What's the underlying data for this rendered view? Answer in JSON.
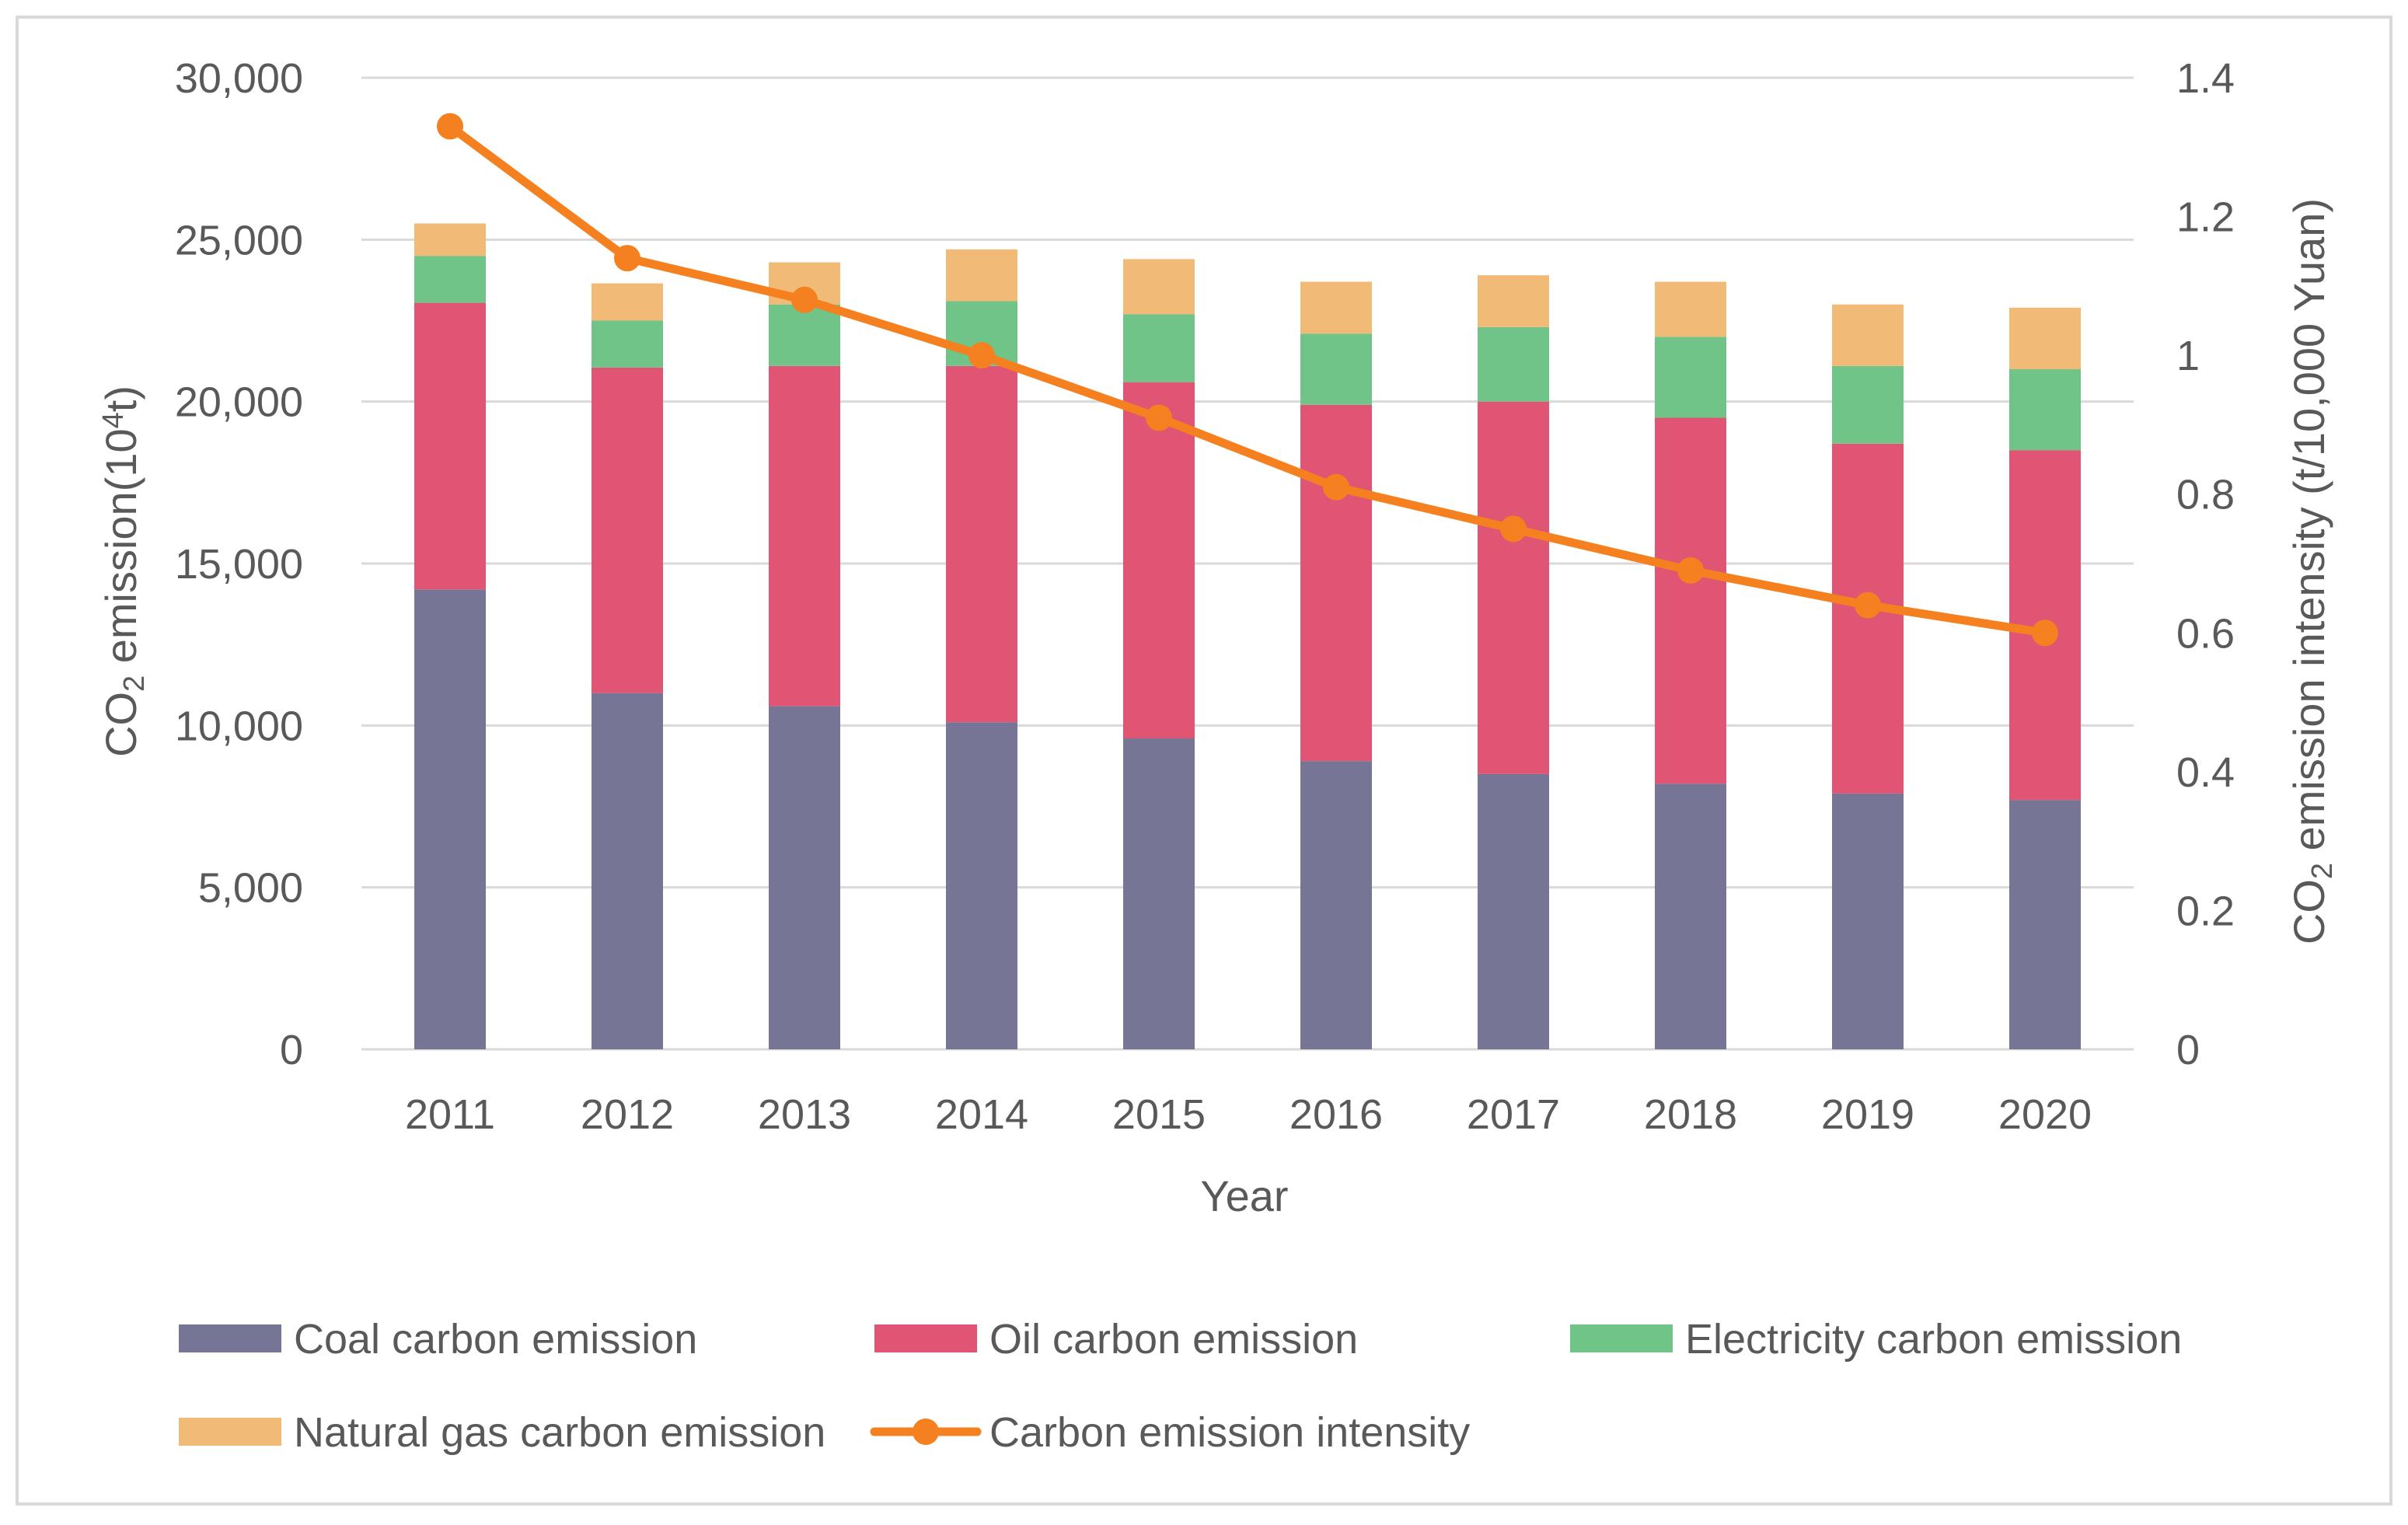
{
  "chart_data": {
    "type": "bar",
    "stacked": true,
    "categories": [
      "2011",
      "2012",
      "2013",
      "2014",
      "2015",
      "2016",
      "2017",
      "2018",
      "2019",
      "2020"
    ],
    "series": [
      {
        "name": "Coal carbon emission",
        "type": "bar",
        "color": "#767595",
        "values": [
          14200,
          11000,
          10600,
          10100,
          9600,
          8900,
          8500,
          8200,
          7900,
          7700
        ]
      },
      {
        "name": "Oil carbon emission",
        "type": "bar",
        "color": "#E05474",
        "values": [
          8850,
          10050,
          10500,
          11000,
          11000,
          11000,
          11500,
          11300,
          10800,
          10800
        ]
      },
      {
        "name": "Electricity carbon emission",
        "type": "bar",
        "color": "#71C488",
        "values": [
          1450,
          1450,
          1900,
          2000,
          2100,
          2200,
          2300,
          2500,
          2400,
          2500
        ]
      },
      {
        "name": "Natural gas carbon emission",
        "type": "bar",
        "color": "#F2BA77",
        "values": [
          1000,
          1150,
          1300,
          1600,
          1700,
          1600,
          1600,
          1700,
          1900,
          1900
        ]
      },
      {
        "name": "Carbon emission intensity",
        "type": "line",
        "axis": "right",
        "color": "#F5801F",
        "values": [
          1.33,
          1.14,
          1.08,
          1.0,
          0.91,
          0.81,
          0.75,
          0.69,
          0.64,
          0.6
        ]
      }
    ],
    "xlabel": "Year",
    "ylabel_left": {
      "base": "CO",
      "sub": "2",
      "mid": " emission(10",
      "sup": "4",
      "end": "t)"
    },
    "ylabel_right": {
      "base": "CO",
      "sub": "2",
      "rest": " emission intensity (t/10,000 Yuan)"
    },
    "ylim_left": [
      0,
      30000
    ],
    "ylim_right": [
      0,
      1.4
    ],
    "left_ticks": [
      "0",
      "5,000",
      "10,000",
      "15,000",
      "20,000",
      "25,000",
      "30,000"
    ],
    "right_ticks": [
      "0",
      "0.2",
      "0.4",
      "0.6",
      "0.8",
      "1",
      "1.2",
      "1.4"
    ],
    "grid": true,
    "legend_position": "bottom"
  }
}
